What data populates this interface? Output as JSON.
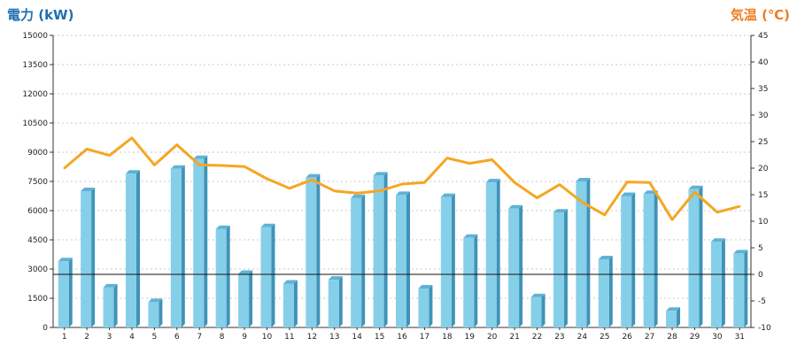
{
  "chart_data": {
    "type": "bar",
    "x": [
      "1",
      "2",
      "3",
      "4",
      "5",
      "6",
      "7",
      "8",
      "9",
      "10",
      "11",
      "12",
      "13",
      "14",
      "15",
      "16",
      "17",
      "18",
      "19",
      "20",
      "21",
      "22",
      "23",
      "24",
      "25",
      "26",
      "27",
      "28",
      "29",
      "30",
      "31"
    ],
    "series": [
      {
        "name": "電力 (kW)",
        "type": "bar",
        "axis": "left",
        "color": "#7ec8e3",
        "values": [
          3400,
          7000,
          2050,
          7900,
          1300,
          8150,
          8650,
          5050,
          2750,
          5150,
          2250,
          7700,
          2450,
          6650,
          7800,
          6800,
          2000,
          6700,
          4600,
          7450,
          6100,
          1550,
          5900,
          7500,
          3500,
          6750,
          6850,
          850,
          7100,
          4400,
          3800
        ]
      },
      {
        "name": "気温 (°C)",
        "type": "line",
        "axis": "right",
        "color": "#f5a623",
        "values": [
          20.0,
          23.6,
          22.4,
          25.7,
          20.6,
          24.4,
          20.6,
          20.5,
          20.3,
          18.0,
          16.2,
          17.8,
          15.7,
          15.3,
          15.7,
          17.0,
          17.3,
          21.9,
          20.9,
          21.6,
          17.3,
          14.4,
          16.9,
          13.6,
          11.2,
          17.4,
          17.3,
          10.3,
          15.5,
          11.7,
          12.8
        ]
      }
    ],
    "left_axis": {
      "title": "電力 (kW)",
      "title_color": "#1f6fb2",
      "ylim": [
        0,
        15000
      ],
      "ticks": [
        "0",
        "1500",
        "3000",
        "4500",
        "6000",
        "7500",
        "9000",
        "10500",
        "12000",
        "13500",
        "15000"
      ]
    },
    "right_axis": {
      "title": "気温 (℃)",
      "title_color": "#f07c1e",
      "ylim": [
        -10,
        45
      ],
      "ticks": [
        "-10",
        "-5",
        "0",
        "5",
        "10",
        "15",
        "20",
        "25",
        "30",
        "35",
        "40",
        "45"
      ]
    },
    "grid": true,
    "zero_line": {
      "axis": "right",
      "value": 0
    }
  }
}
